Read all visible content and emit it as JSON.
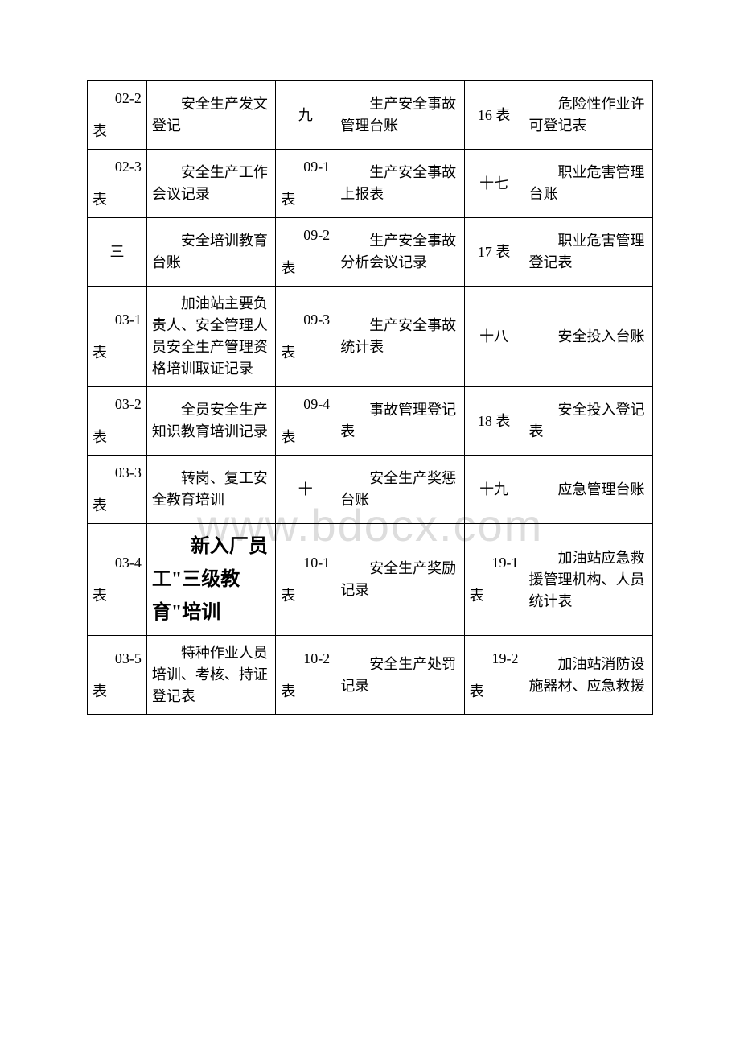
{
  "watermark_text": "www.bdocx.com",
  "table": {
    "border_color": "#000000",
    "background_color": "#ffffff",
    "text_color": "#000000",
    "watermark_color": "#dddddd",
    "font_size": 18,
    "bold_font_size": 24,
    "columns": [
      {
        "type": "code",
        "width_pct": 10.5
      },
      {
        "type": "desc",
        "width_pct": 22.8
      },
      {
        "type": "code",
        "width_pct": 10.5
      },
      {
        "type": "desc",
        "width_pct": 22.8
      },
      {
        "type": "code",
        "width_pct": 10.5
      },
      {
        "type": "desc",
        "width_pct": 22.8
      }
    ],
    "rows": [
      {
        "c1": {
          "prefix": "表",
          "code": "02-2"
        },
        "d1": "安全生产发文登记",
        "c2": {
          "prefix": "",
          "code": "九"
        },
        "d2": "生产安全事故管理台账",
        "c3": {
          "prefix": "",
          "code": "16 表"
        },
        "d3": "危险性作业许可登记表"
      },
      {
        "c1": {
          "prefix": "表",
          "code": "02-3"
        },
        "d1": "安全生产工作会议记录",
        "c2": {
          "prefix": "表",
          "code": "09-1"
        },
        "d2": "生产安全事故上报表",
        "c3": {
          "prefix": "",
          "code": "十七"
        },
        "d3": "职业危害管理台账"
      },
      {
        "c1": {
          "prefix": "",
          "code": "三"
        },
        "d1": "安全培训教育台账",
        "c2": {
          "prefix": "表",
          "code": "09-2"
        },
        "d2": "生产安全事故分析会议记录",
        "c3": {
          "prefix": "",
          "code": "17 表"
        },
        "d3": "职业危害管理登记表"
      },
      {
        "c1": {
          "prefix": "表",
          "code": "03-1"
        },
        "d1": "加油站主要负责人、安全管理人员安全生产管理资格培训取证记录",
        "c2": {
          "prefix": "表",
          "code": "09-3"
        },
        "d2": "生产安全事故统计表",
        "c3": {
          "prefix": "",
          "code": "十八"
        },
        "d3": "安全投入台账"
      },
      {
        "c1": {
          "prefix": "表",
          "code": "03-2"
        },
        "d1": "全员安全生产知识教育培训记录",
        "c2": {
          "prefix": "表",
          "code": "09-4"
        },
        "d2": "事故管理登记表",
        "c3": {
          "prefix": "",
          "code": "18 表"
        },
        "d3": "安全投入登记表"
      },
      {
        "c1": {
          "prefix": "表",
          "code": "03-3"
        },
        "d1": "转岗、复工安全教育培训",
        "c2": {
          "prefix": "",
          "code": "十"
        },
        "d2": "安全生产奖惩台账",
        "c3": {
          "prefix": "",
          "code": "十九"
        },
        "d3": "应急管理台账"
      },
      {
        "c1": {
          "prefix": "表",
          "code": "03-4"
        },
        "d1": "新入厂员工\"三级教育\"培训",
        "d1_bold": true,
        "c2": {
          "prefix": "表",
          "code": "10-1"
        },
        "d2": "安全生产奖励记录",
        "c3": {
          "prefix": "表",
          "code": "19-1"
        },
        "d3": "加油站应急救援管理机构、人员统计表"
      },
      {
        "c1": {
          "prefix": "表",
          "code": "03-5"
        },
        "d1": "特种作业人员培训、考核、持证登记表",
        "c2": {
          "prefix": "表",
          "code": "10-2"
        },
        "d2": "安全生产处罚记录",
        "c3": {
          "prefix": "表",
          "code": "19-2"
        },
        "d3": "加油站消防设施器材、应急救援"
      }
    ]
  }
}
